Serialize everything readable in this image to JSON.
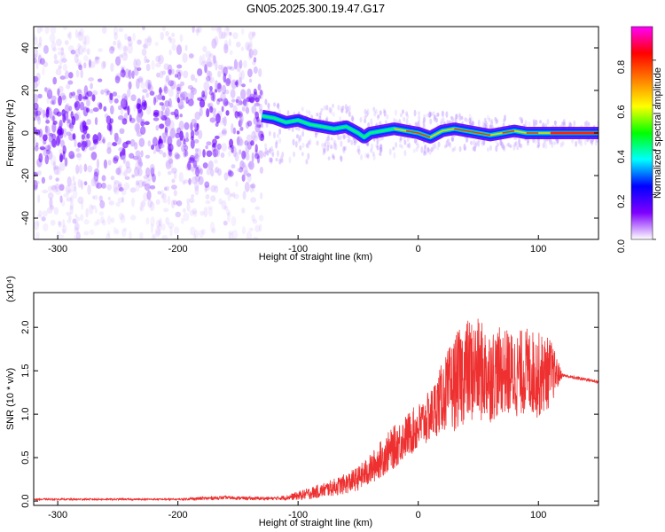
{
  "title": "GN05.2025.300.19.47.G17",
  "chart_data": [
    {
      "type": "heatmap",
      "xlabel": "Height of straight line (km)",
      "ylabel": "Frequency (Hz)",
      "xlim": [
        -320,
        150
      ],
      "ylim": [
        -50,
        50
      ],
      "xticks": [
        -300,
        -200,
        -100,
        0,
        100
      ],
      "yticks": [
        -40,
        -20,
        0,
        20,
        40
      ],
      "colorbar": {
        "label": "Normalized spectral amplitude",
        "range": [
          0.0,
          0.95
        ],
        "ticks": [
          0.0,
          0.2,
          0.4,
          0.6,
          0.8
        ],
        "tick_labels": [
          "0.0",
          "0.2",
          "0.4",
          "0.6",
          "0.8"
        ],
        "colors": [
          "#ffffff",
          "#7f00ff",
          "#0000ff",
          "#00ffff",
          "#00ff00",
          "#ffff00",
          "#ff7f00",
          "#ff0000",
          "#ff00ff"
        ]
      },
      "ridge": {
        "x": [
          -130,
          -120,
          -110,
          -100,
          -90,
          -80,
          -70,
          -60,
          -50,
          -45,
          -40,
          -30,
          -20,
          -10,
          0,
          10,
          20,
          30,
          40,
          50,
          60,
          70,
          80,
          90,
          100,
          110,
          120,
          130,
          150
        ],
        "y": [
          8,
          7,
          5,
          6,
          4,
          3,
          2,
          3,
          0,
          -2,
          0,
          1,
          2,
          1,
          0,
          -2,
          1,
          2,
          1,
          0,
          -1,
          0,
          1,
          0,
          0,
          0,
          0,
          0,
          0
        ]
      }
    },
    {
      "type": "line",
      "xlabel": "Height of straight line (km)",
      "ylabel": "SNR (10 * v/v)",
      "y_multiplier": "(x10⁴)",
      "xlim": [
        -320,
        150
      ],
      "ylim": [
        -0.05,
        2.4
      ],
      "xticks": [
        -300,
        -200,
        -100,
        0,
        100
      ],
      "yticks": [
        0.0,
        0.5,
        1.0,
        1.5,
        2.0
      ],
      "ytick_labels": [
        "0.0",
        "0.5",
        "1.0",
        "1.5",
        "2.0"
      ],
      "series": [
        {
          "color": "#ee3030",
          "x": [
            -320,
            -300,
            -280,
            -260,
            -240,
            -220,
            -200,
            -180,
            -160,
            -140,
            -120,
            -110,
            -100,
            -90,
            -80,
            -70,
            -60,
            -50,
            -40,
            -30,
            -20,
            -10,
            0,
            10,
            20,
            30,
            40,
            50,
            60,
            70,
            80,
            90,
            100,
            110,
            120,
            130,
            140,
            150
          ],
          "y": [
            0.02,
            0.02,
            0.02,
            0.02,
            0.02,
            0.02,
            0.02,
            0.03,
            0.04,
            0.03,
            0.03,
            0.04,
            0.06,
            0.09,
            0.12,
            0.16,
            0.2,
            0.26,
            0.36,
            0.5,
            0.62,
            0.75,
            0.85,
            0.98,
            1.2,
            1.35,
            1.5,
            1.5,
            1.45,
            1.5,
            1.45,
            1.5,
            1.45,
            1.48,
            1.45,
            1.42,
            1.4,
            1.37
          ],
          "noise": [
            0.01,
            0.01,
            0.01,
            0.01,
            0.01,
            0.01,
            0.01,
            0.02,
            0.02,
            0.02,
            0.02,
            0.03,
            0.05,
            0.07,
            0.08,
            0.1,
            0.12,
            0.14,
            0.18,
            0.22,
            0.25,
            0.25,
            0.28,
            0.3,
            0.4,
            0.55,
            0.6,
            0.6,
            0.55,
            0.5,
            0.5,
            0.5,
            0.5,
            0.4,
            0.02,
            0.02,
            0.02,
            0.02
          ]
        }
      ]
    }
  ]
}
